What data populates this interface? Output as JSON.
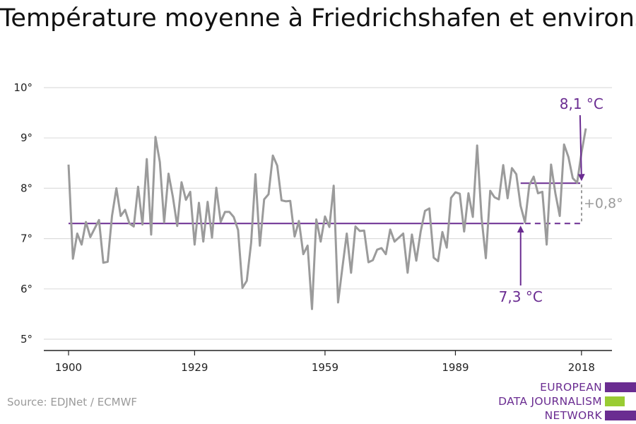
{
  "title": "Température moyenne à Friedrichshafen et environs",
  "source": "Source: EDJNet / ECMWF",
  "logo": {
    "lines": [
      "EUROPEAN",
      "DATA JOURNALISM",
      "NETWORK"
    ],
    "colors": [
      "#6a2c91",
      "#99cc33",
      "#6a2c91"
    ]
  },
  "colors": {
    "series": "#9b9b9b",
    "reference": "#6a2c91",
    "diff": "#9b9b9b",
    "grid": "#dddddd",
    "axis": "#222222"
  },
  "chart_data": {
    "type": "line",
    "title": "Température moyenne à Friedrichshafen et environs",
    "xlabel": "",
    "ylabel": "",
    "xlim": [
      1900,
      2019
    ],
    "ylim": [
      5,
      10
    ],
    "xticks": [
      1900,
      1929,
      1959,
      1989,
      2018
    ],
    "yticks": [
      {
        "value": 5,
        "label": "5°"
      },
      {
        "value": 6,
        "label": "6°"
      },
      {
        "value": 7,
        "label": "7°"
      },
      {
        "value": 8,
        "label": "8°"
      },
      {
        "value": 9,
        "label": "9°"
      },
      {
        "value": 10,
        "label": "10°"
      }
    ],
    "grid": true,
    "series": [
      {
        "x": [
          1900,
          1901,
          1902,
          1903,
          1904,
          1905,
          1906,
          1907,
          1908,
          1909,
          1910,
          1911,
          1912,
          1913,
          1914,
          1915,
          1916,
          1917,
          1918,
          1919,
          1920,
          1921,
          1922,
          1923,
          1924,
          1925,
          1926,
          1927,
          1928,
          1929,
          1930,
          1931,
          1932,
          1933,
          1934,
          1935,
          1936,
          1937,
          1938,
          1939,
          1940,
          1941,
          1942,
          1943,
          1944,
          1945,
          1946,
          1947,
          1948,
          1949,
          1950,
          1951,
          1952,
          1953,
          1954,
          1955,
          1956,
          1957,
          1958,
          1959,
          1960,
          1961,
          1962,
          1963,
          1964,
          1965,
          1966,
          1967,
          1968,
          1969,
          1970,
          1971,
          1972,
          1973,
          1974,
          1975,
          1976,
          1977,
          1978,
          1979,
          1980,
          1981,
          1982,
          1983,
          1984,
          1985,
          1986,
          1987,
          1988,
          1989,
          1990,
          1991,
          1992,
          1993,
          1994,
          1995,
          1996,
          1997,
          1998,
          1999,
          2000,
          2001,
          2002,
          2003,
          2004,
          2005,
          2006,
          2007,
          2008,
          2009,
          2010,
          2011,
          2012,
          2013,
          2014,
          2015,
          2016,
          2017,
          2018,
          2019
        ],
        "values": [
          8.47,
          6.6,
          7.1,
          6.88,
          7.33,
          7.03,
          7.2,
          7.37,
          6.52,
          6.54,
          7.45,
          8.0,
          7.45,
          7.57,
          7.3,
          7.24,
          8.03,
          7.28,
          8.58,
          7.08,
          9.02,
          8.52,
          7.32,
          8.29,
          7.83,
          7.25,
          8.12,
          7.77,
          7.93,
          6.88,
          7.71,
          6.94,
          7.73,
          7.02,
          8.01,
          7.33,
          7.53,
          7.53,
          7.43,
          7.17,
          6.02,
          6.16,
          6.92,
          8.28,
          6.86,
          7.78,
          7.88,
          8.65,
          8.45,
          7.76,
          7.74,
          7.75,
          7.04,
          7.35,
          6.69,
          6.86,
          5.6,
          7.38,
          6.94,
          7.44,
          7.23,
          8.05,
          5.73,
          6.42,
          7.1,
          6.32,
          7.24,
          7.15,
          7.16,
          6.53,
          6.57,
          6.78,
          6.81,
          6.69,
          7.18,
          6.94,
          7.02,
          7.1,
          6.32,
          7.08,
          6.56,
          7.14,
          7.55,
          7.6,
          6.62,
          6.55,
          7.13,
          6.82,
          7.81,
          7.92,
          7.89,
          7.14,
          7.9,
          7.43,
          8.85,
          7.42,
          6.61,
          7.95,
          7.82,
          7.78,
          8.46,
          7.8,
          8.4,
          8.28,
          7.65,
          7.32,
          8.06,
          8.23,
          7.9,
          7.93,
          6.88,
          8.47,
          7.9,
          7.45,
          8.87,
          8.62,
          8.2,
          8.11,
          8.7,
          9.19
        ]
      }
    ],
    "reference_lines": [
      {
        "value": 7.3,
        "from": 1900,
        "to": 2019,
        "style": "solid",
        "dashed_from": 2005,
        "label": "7,3 °C",
        "arrow_x": 2004
      },
      {
        "value": 8.1,
        "from": 2004,
        "to": 2019,
        "style": "solid",
        "label": "8,1 °C",
        "arrow_x": 2018
      }
    ],
    "difference": {
      "label": "+0,8°",
      "x": 2019
    }
  }
}
